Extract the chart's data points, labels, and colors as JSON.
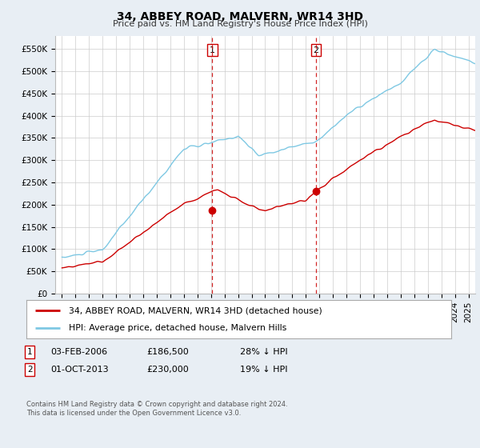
{
  "title": "34, ABBEY ROAD, MALVERN, WR14 3HD",
  "subtitle": "Price paid vs. HM Land Registry's House Price Index (HPI)",
  "ylabel_ticks": [
    "£0",
    "£50K",
    "£100K",
    "£150K",
    "£200K",
    "£250K",
    "£300K",
    "£350K",
    "£400K",
    "£450K",
    "£500K",
    "£550K"
  ],
  "ytick_values": [
    0,
    50000,
    100000,
    150000,
    200000,
    250000,
    300000,
    350000,
    400000,
    450000,
    500000,
    550000
  ],
  "ylim": [
    0,
    580000
  ],
  "sale1_date_x": 2006.09,
  "sale1_price": 186500,
  "sale2_date_x": 2013.75,
  "sale2_price": 230000,
  "vline1_x": 2006.09,
  "vline2_x": 2013.75,
  "hpi_color": "#7ec8e3",
  "price_color": "#cc0000",
  "vline_color": "#cc0000",
  "background_color": "#e8eef4",
  "plot_bg_color": "#ffffff",
  "grid_color": "#cccccc",
  "legend_label1": "34, ABBEY ROAD, MALVERN, WR14 3HD (detached house)",
  "legend_label2": "HPI: Average price, detached house, Malvern Hills",
  "footer": "Contains HM Land Registry data © Crown copyright and database right 2024.\nThis data is licensed under the Open Government Licence v3.0.",
  "xmin": 1994.5,
  "xmax": 2025.5,
  "sale1_date_str": "03-FEB-2006",
  "sale1_price_str": "£186,500",
  "sale1_hpi_str": "28% ↓ HPI",
  "sale2_date_str": "01-OCT-2013",
  "sale2_price_str": "£230,000",
  "sale2_hpi_str": "19% ↓ HPI"
}
